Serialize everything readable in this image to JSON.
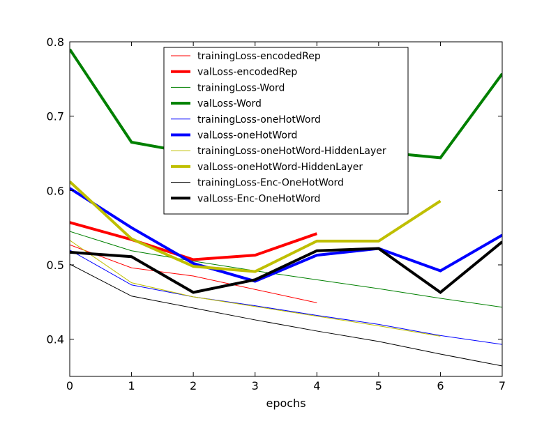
{
  "chart_data": {
    "type": "line",
    "title": "",
    "xlabel": "epochs",
    "ylabel": "",
    "xlim": [
      0,
      7
    ],
    "ylim": [
      0.35,
      0.8
    ],
    "xticks": [
      "0",
      "1",
      "2",
      "3",
      "4",
      "5",
      "6",
      "7"
    ],
    "yticks": [
      "0.4",
      "0.5",
      "0.6",
      "0.7",
      "0.8"
    ],
    "grid": false,
    "legend_position": "top-center",
    "series": [
      {
        "name": "trainingLoss-encodedRep",
        "color": "#ff0000",
        "style": "thin",
        "x": [
          0,
          1,
          2,
          3,
          4
        ],
        "y": [
          0.527,
          0.496,
          0.485,
          0.467,
          0.449
        ]
      },
      {
        "name": "valLoss-encodedRep",
        "color": "#ff0000",
        "style": "thick",
        "x": [
          0,
          1,
          2,
          3,
          4
        ],
        "y": [
          0.557,
          0.534,
          0.507,
          0.513,
          0.542
        ]
      },
      {
        "name": "trainingLoss-Word",
        "color": "#008000",
        "style": "thin",
        "x": [
          0,
          1,
          2,
          3,
          4,
          5,
          6,
          7
        ],
        "y": [
          0.545,
          0.519,
          0.505,
          0.492,
          0.48,
          0.468,
          0.455,
          0.443
        ]
      },
      {
        "name": "valLoss-Word",
        "color": "#008000",
        "style": "thick",
        "x": [
          0,
          1,
          2,
          3,
          4,
          5,
          6,
          7
        ],
        "y": [
          0.79,
          0.665,
          0.65,
          0.656,
          0.651,
          0.652,
          0.644,
          0.757
        ]
      },
      {
        "name": "trainingLoss-oneHotWord",
        "color": "#0000ff",
        "style": "thin",
        "x": [
          0,
          1,
          2,
          3,
          4,
          5,
          6,
          7
        ],
        "y": [
          0.52,
          0.473,
          0.457,
          0.445,
          0.432,
          0.42,
          0.405,
          0.393
        ]
      },
      {
        "name": "valLoss-oneHotWord",
        "color": "#0000ff",
        "style": "thick",
        "x": [
          0,
          1,
          2,
          3,
          4,
          5,
          6,
          7
        ],
        "y": [
          0.603,
          0.55,
          0.502,
          0.478,
          0.513,
          0.522,
          0.492,
          0.54
        ]
      },
      {
        "name": "trainingLoss-oneHotWord-HiddenLayer",
        "color": "#bfbf00",
        "style": "thin",
        "x": [
          0,
          1,
          2,
          3,
          4,
          5,
          6
        ],
        "y": [
          0.533,
          0.476,
          0.457,
          0.444,
          0.431,
          0.418,
          0.404
        ]
      },
      {
        "name": "valLoss-oneHotWord-HiddenLayer",
        "color": "#bfbf00",
        "style": "thick",
        "x": [
          0,
          1,
          2,
          3,
          4,
          5,
          6
        ],
        "y": [
          0.612,
          0.535,
          0.498,
          0.491,
          0.532,
          0.532,
          0.586
        ]
      },
      {
        "name": "trainingLoss-Enc-OneHotWord",
        "color": "#000000",
        "style": "thin",
        "x": [
          0,
          1,
          2,
          3,
          4,
          5,
          6,
          7
        ],
        "y": [
          0.501,
          0.458,
          0.442,
          0.426,
          0.411,
          0.397,
          0.38,
          0.364
        ]
      },
      {
        "name": "valLoss-Enc-OneHotWord",
        "color": "#000000",
        "style": "thick",
        "x": [
          0,
          1,
          2,
          3,
          4,
          5,
          6,
          7
        ],
        "y": [
          0.517,
          0.511,
          0.463,
          0.48,
          0.519,
          0.522,
          0.463,
          0.531
        ]
      }
    ]
  }
}
